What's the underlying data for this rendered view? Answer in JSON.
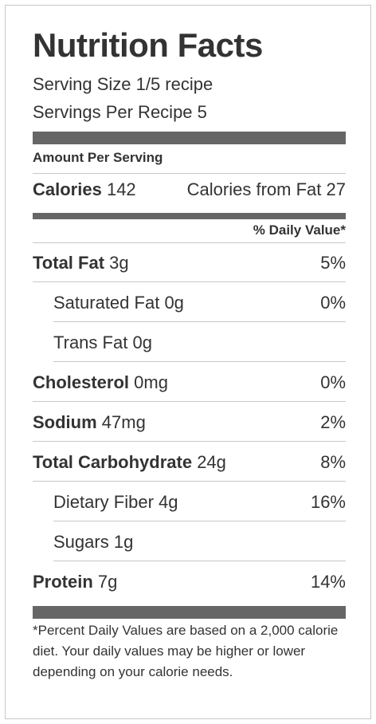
{
  "title": "Nutrition Facts",
  "serving_size": "Serving Size 1/5 recipe",
  "servings_per_recipe": "Servings Per Recipe 5",
  "amount_per_serving": "Amount Per Serving",
  "calories": {
    "label": "Calories",
    "value": "142",
    "from_fat_label": "Calories from Fat",
    "from_fat_value": "27"
  },
  "daily_value_header": "% Daily Value*",
  "nutrients": [
    {
      "name": "Total Fat",
      "amount": "3g",
      "dv": "5%",
      "bold": true,
      "sub": false
    },
    {
      "name": "Saturated Fat",
      "amount": "0g",
      "dv": "0%",
      "bold": false,
      "sub": true
    },
    {
      "name": "Trans Fat",
      "amount": "0g",
      "dv": "",
      "bold": false,
      "sub": true
    },
    {
      "name": "Cholesterol",
      "amount": "0mg",
      "dv": "0%",
      "bold": true,
      "sub": false
    },
    {
      "name": "Sodium",
      "amount": "47mg",
      "dv": "2%",
      "bold": true,
      "sub": false
    },
    {
      "name": "Total Carbohydrate",
      "amount": "24g",
      "dv": "8%",
      "bold": true,
      "sub": false
    },
    {
      "name": "Dietary Fiber",
      "amount": "4g",
      "dv": "16%",
      "bold": false,
      "sub": true
    },
    {
      "name": "Sugars",
      "amount": "1g",
      "dv": "",
      "bold": false,
      "sub": true
    },
    {
      "name": "Protein",
      "amount": "7g",
      "dv": "14%",
      "bold": true,
      "sub": false
    }
  ],
  "footnote": "*Percent Daily Values are based on a 2,000 calorie diet. Your daily values may be higher or lower depending on your calorie needs."
}
